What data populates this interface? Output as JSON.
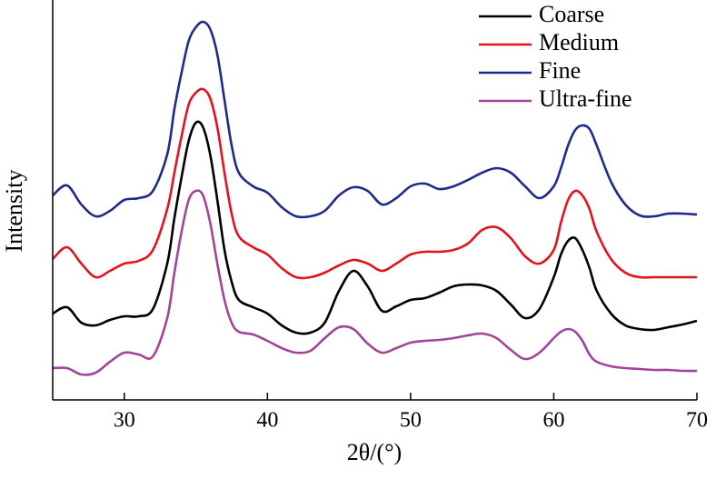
{
  "chart_data": {
    "type": "line",
    "x_label": "2θ/(°)",
    "y_label": "Intensity",
    "xlim": [
      25,
      70
    ],
    "ylim": [
      0,
      440
    ],
    "xticks": [
      30,
      40,
      50,
      60,
      70
    ],
    "legend": "upper right",
    "x": [
      25,
      26,
      27,
      28,
      29,
      30,
      31,
      32,
      33,
      33.5,
      34,
      34.5,
      35,
      35.5,
      36,
      36.5,
      37,
      37.5,
      38,
      39,
      40,
      41,
      42,
      43,
      44,
      45,
      46,
      47,
      48,
      49,
      50,
      51,
      52,
      53,
      54,
      55,
      56,
      57,
      58,
      59,
      60,
      60.5,
      61,
      61.5,
      62,
      62.5,
      63,
      64,
      65,
      66,
      67,
      68,
      69,
      70
    ],
    "series": [
      {
        "name": "Coarse",
        "color": "#000000",
        "values": [
          95,
          102,
          85,
          82,
          88,
          92,
          92,
          100,
          150,
          200,
          245,
          285,
          305,
          300,
          270,
          220,
          165,
          130,
          110,
          102,
          95,
          82,
          74,
          74,
          85,
          120,
          142,
          125,
          98,
          103,
          110,
          112,
          118,
          125,
          127,
          126,
          120,
          105,
          90,
          100,
          135,
          160,
          175,
          178,
          165,
          145,
          120,
          95,
          82,
          78,
          77,
          80,
          83,
          87
        ]
      },
      {
        "name": "Medium",
        "color": "#e0141e",
        "values": [
          155,
          168,
          150,
          135,
          142,
          150,
          153,
          165,
          210,
          250,
          290,
          325,
          338,
          342,
          332,
          300,
          250,
          205,
          180,
          168,
          160,
          145,
          135,
          135,
          140,
          148,
          154,
          150,
          142,
          150,
          160,
          163,
          163,
          165,
          172,
          187,
          190,
          178,
          158,
          150,
          165,
          195,
          220,
          230,
          225,
          210,
          185,
          155,
          140,
          135,
          135,
          135,
          135,
          135
        ]
      },
      {
        "name": "Fine",
        "color": "#1f2a8a",
        "values": [
          225,
          236,
          215,
          202,
          208,
          220,
          222,
          230,
          270,
          320,
          360,
          395,
          410,
          416,
          408,
          380,
          330,
          280,
          250,
          235,
          228,
          212,
          202,
          202,
          208,
          225,
          234,
          230,
          215,
          222,
          235,
          238,
          232,
          235,
          242,
          250,
          255,
          250,
          235,
          222,
          235,
          255,
          280,
          297,
          302,
          298,
          280,
          240,
          215,
          203,
          202,
          205,
          205,
          204
        ]
      },
      {
        "name": "Ultra-fine",
        "color": "#a2449a",
        "values": [
          35,
          35,
          28,
          30,
          42,
          52,
          50,
          48,
          90,
          140,
          185,
          220,
          230,
          225,
          195,
          150,
          110,
          85,
          75,
          72,
          65,
          57,
          52,
          54,
          68,
          80,
          78,
          62,
          52,
          57,
          63,
          65,
          66,
          68,
          71,
          73,
          68,
          55,
          45,
          52,
          68,
          75,
          78,
          75,
          65,
          50,
          42,
          37,
          35,
          34,
          33,
          33,
          32,
          32
        ]
      }
    ]
  }
}
